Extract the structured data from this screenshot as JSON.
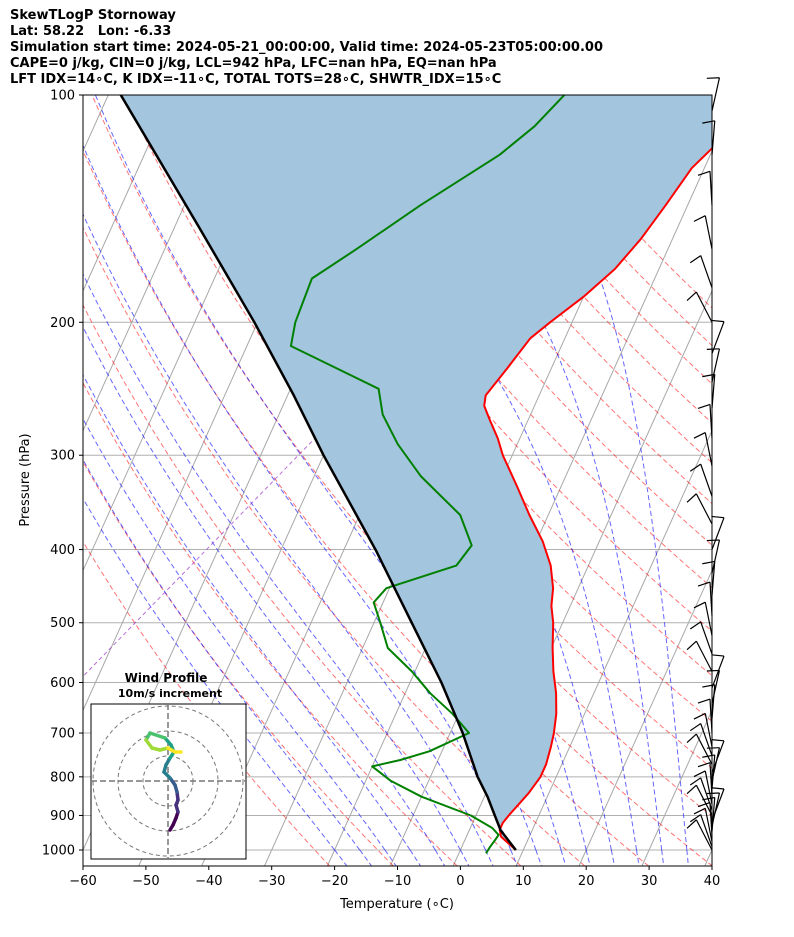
{
  "header": {
    "lines": [
      "SkewTLogP Stornoway",
      "Lat: 58.22   Lon: -6.33",
      "Simulation start time: 2024-05-21_00:00:00, Valid time: 2024-05-23T05:00:00.00",
      "CAPE=0 j/kg, CIN=0 j/kg, LCL=942 hPa, LFC=nan hPa, EQ=nan hPa",
      "LFT IDX=14∘C, K IDX=-11∘C, TOTAL TOTS=28∘C, SHWTR_IDX=15∘C"
    ]
  },
  "chart_data": [
    {
      "type": "line",
      "subtype": "skew-t log-p diagram",
      "xlabel": "Temperature (∘C)",
      "ylabel": "Pressure (hPa)",
      "xlim": [
        -60,
        40
      ],
      "ylim": [
        1050,
        100
      ],
      "y_scale": "log",
      "grid": true,
      "x_ticks": [
        "−60",
        "−50",
        "−40",
        "−30",
        "−20",
        "−10",
        "0",
        "10",
        "20",
        "30",
        "40"
      ],
      "x_tick_values": [
        -60,
        -50,
        -40,
        -30,
        -20,
        -10,
        0,
        10,
        20,
        30,
        40
      ],
      "y_ticks": [
        "100",
        "200",
        "300",
        "400",
        "500",
        "600",
        "700",
        "800",
        "900",
        "1000"
      ],
      "y_tick_values": [
        100,
        200,
        300,
        400,
        500,
        600,
        700,
        800,
        900,
        1000
      ],
      "series": [
        {
          "role": "temperature",
          "color": "#ff0000",
          "points": [
            [
              1000,
              8.8
            ],
            [
              960,
              5.5
            ],
            [
              940,
              4.8
            ],
            [
              920,
              4.8
            ],
            [
              900,
              5.2
            ],
            [
              870,
              6.0
            ],
            [
              840,
              6.8
            ],
            [
              800,
              7.5
            ],
            [
              770,
              7.5
            ],
            [
              730,
              7.0
            ],
            [
              700,
              6.5
            ],
            [
              660,
              5.5
            ],
            [
              620,
              4.0
            ],
            [
              580,
              2.0
            ],
            [
              540,
              0.2
            ],
            [
              500,
              -1.5
            ],
            [
              475,
              -3.0
            ],
            [
              450,
              -4.0
            ],
            [
              420,
              -6.0
            ],
            [
              390,
              -9.0
            ],
            [
              360,
              -13.0
            ],
            [
              330,
              -17.0
            ],
            [
              300,
              -21.5
            ],
            [
              285,
              -23.5
            ],
            [
              270,
              -26.0
            ],
            [
              258,
              -28.0
            ],
            [
              250,
              -28.5
            ],
            [
              230,
              -27.0
            ],
            [
              210,
              -25.5
            ],
            [
              200,
              -23.5
            ],
            [
              185,
              -20.0
            ],
            [
              170,
              -17.0
            ],
            [
              155,
              -15.0
            ],
            [
              140,
              -13.5
            ],
            [
              125,
              -12.0
            ],
            [
              115,
              -9.5
            ],
            [
              105,
              -8.0
            ],
            [
              100,
              -6.8
            ]
          ]
        },
        {
          "role": "dewpoint",
          "color": "#008000",
          "points": [
            [
              1010,
              4.3
            ],
            [
              990,
              4.5
            ],
            [
              970,
              4.8
            ],
            [
              955,
              5.0
            ],
            [
              935,
              3.5
            ],
            [
              900,
              -0.8
            ],
            [
              850,
              -10.0
            ],
            [
              810,
              -16.0
            ],
            [
              775,
              -20.0
            ],
            [
              760,
              -16.0
            ],
            [
              740,
              -12.0
            ],
            [
              700,
              -7.0
            ],
            [
              660,
              -11.0
            ],
            [
              620,
              -16.0
            ],
            [
              580,
              -20.5
            ],
            [
              540,
              -26.0
            ],
            [
              500,
              -29.0
            ],
            [
              470,
              -31.5
            ],
            [
              450,
              -30.5
            ],
            [
              420,
              -21.0
            ],
            [
              395,
              -20.0
            ],
            [
              360,
              -24.0
            ],
            [
              320,
              -33.0
            ],
            [
              290,
              -39.0
            ],
            [
              265,
              -43.5
            ],
            [
              245,
              -46.0
            ],
            [
              215,
              -63.0
            ],
            [
              200,
              -64.0
            ],
            [
              175,
              -64.5
            ],
            [
              160,
              -59.5
            ],
            [
              140,
              -52.5
            ],
            [
              120,
              -43.5
            ],
            [
              110,
              -40.0
            ],
            [
              100,
              -37.5
            ]
          ]
        },
        {
          "role": "parcel",
          "color": "#000000",
          "points": [
            [
              1000,
              8.8
            ],
            [
              942,
              5.0
            ],
            [
              900,
              3.0
            ],
            [
              850,
              0.5
            ],
            [
              800,
              -2.5
            ],
            [
              700,
              -8.0
            ],
            [
              600,
              -15.0
            ],
            [
              500,
              -24.0
            ],
            [
              400,
              -35.0
            ],
            [
              300,
              -50.0
            ],
            [
              250,
              -59.0
            ],
            [
              200,
              -70.5
            ],
            [
              150,
              -86.0
            ],
            [
              100,
              -108.0
            ]
          ]
        }
      ],
      "dry_adiabats_theta_K": [
        250,
        260,
        270,
        280,
        290,
        300,
        310,
        320,
        330,
        340,
        350,
        360,
        370,
        380,
        390,
        400,
        410,
        420,
        430,
        440
      ],
      "moist_adiabats_color": "#0000ff",
      "dry_adiabats_color": "#ff0000",
      "isotherm_color": "#808080",
      "wind_barbs": {
        "levels_hPa": [
          1000,
          990,
          975,
          960,
          945,
          930,
          915,
          900,
          885,
          870,
          850,
          830,
          810,
          790,
          770,
          750,
          730,
          700,
          670,
          640,
          610,
          580,
          550,
          520,
          490,
          460,
          430,
          400,
          370,
          340,
          310,
          285,
          260,
          240,
          220,
          200,
          180,
          160,
          140,
          120,
          105
        ]
      },
      "inset": {
        "title": "Wind Profile",
        "subtitle": "10m/s increment",
        "colormap": "viridis"
      }
    }
  ]
}
